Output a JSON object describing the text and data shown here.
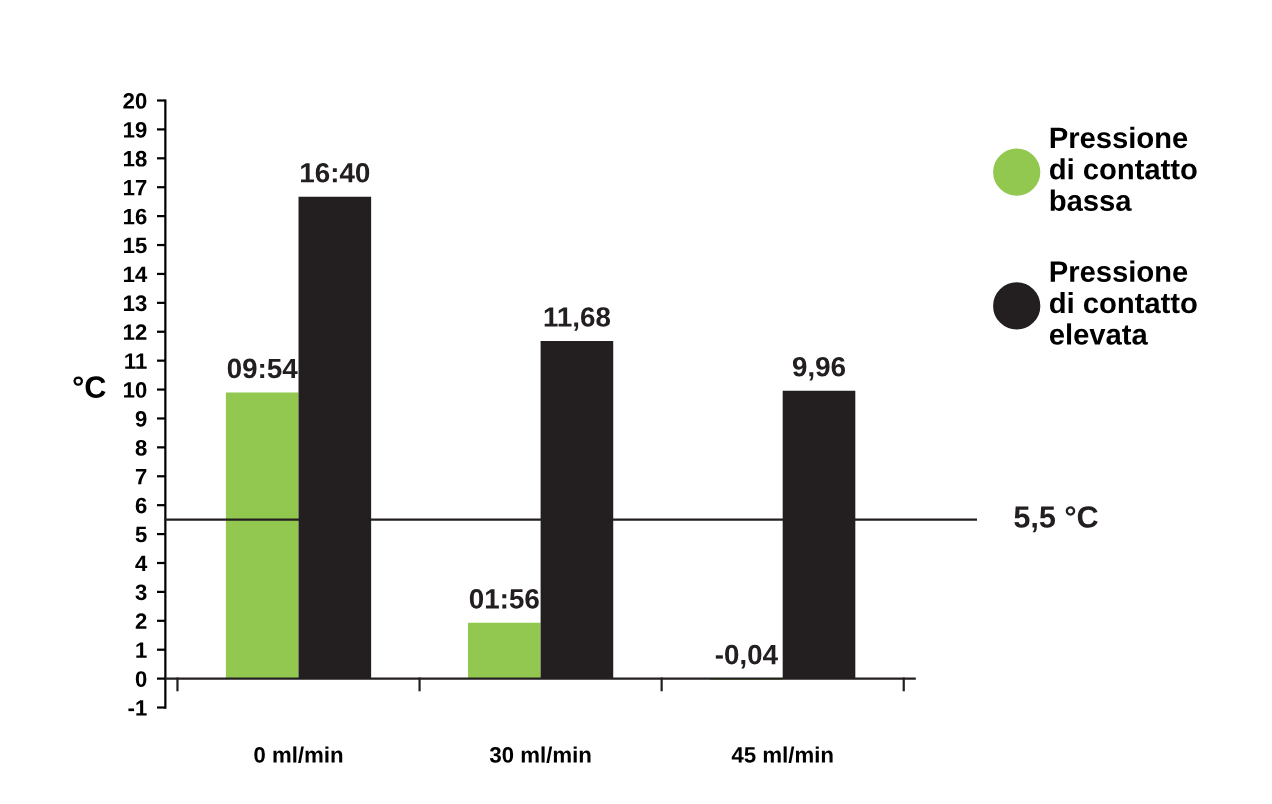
{
  "chart_data": {
    "type": "bar",
    "categories": [
      "0 ml/min",
      "30 ml/min",
      "45 ml/min"
    ],
    "ylabel": "°C",
    "series": [
      {
        "name": "Pressione\ndi contatto\nbassa",
        "color": "#92c84f",
        "values": [
          9.9,
          1.93,
          -0.04
        ],
        "value_labels": [
          "09:54",
          "01:56",
          "-0,04"
        ]
      },
      {
        "name": "Pressione\ndi contatto\nelevata",
        "color": "#231f20",
        "values": [
          16.67,
          11.68,
          9.96
        ],
        "value_labels": [
          "16:40",
          "11,68",
          "9,96"
        ]
      }
    ],
    "ylim": [
      -1,
      20
    ],
    "yticks": [
      -1,
      0,
      1,
      2,
      3,
      4,
      5,
      6,
      7,
      8,
      9,
      10,
      11,
      12,
      13,
      14,
      15,
      16,
      17,
      18,
      19,
      20
    ],
    "ref_lines": [
      {
        "axis": "y",
        "value": 5.5,
        "label": "5,5 °C",
        "color": "#231f20"
      }
    ],
    "legend": "right"
  }
}
